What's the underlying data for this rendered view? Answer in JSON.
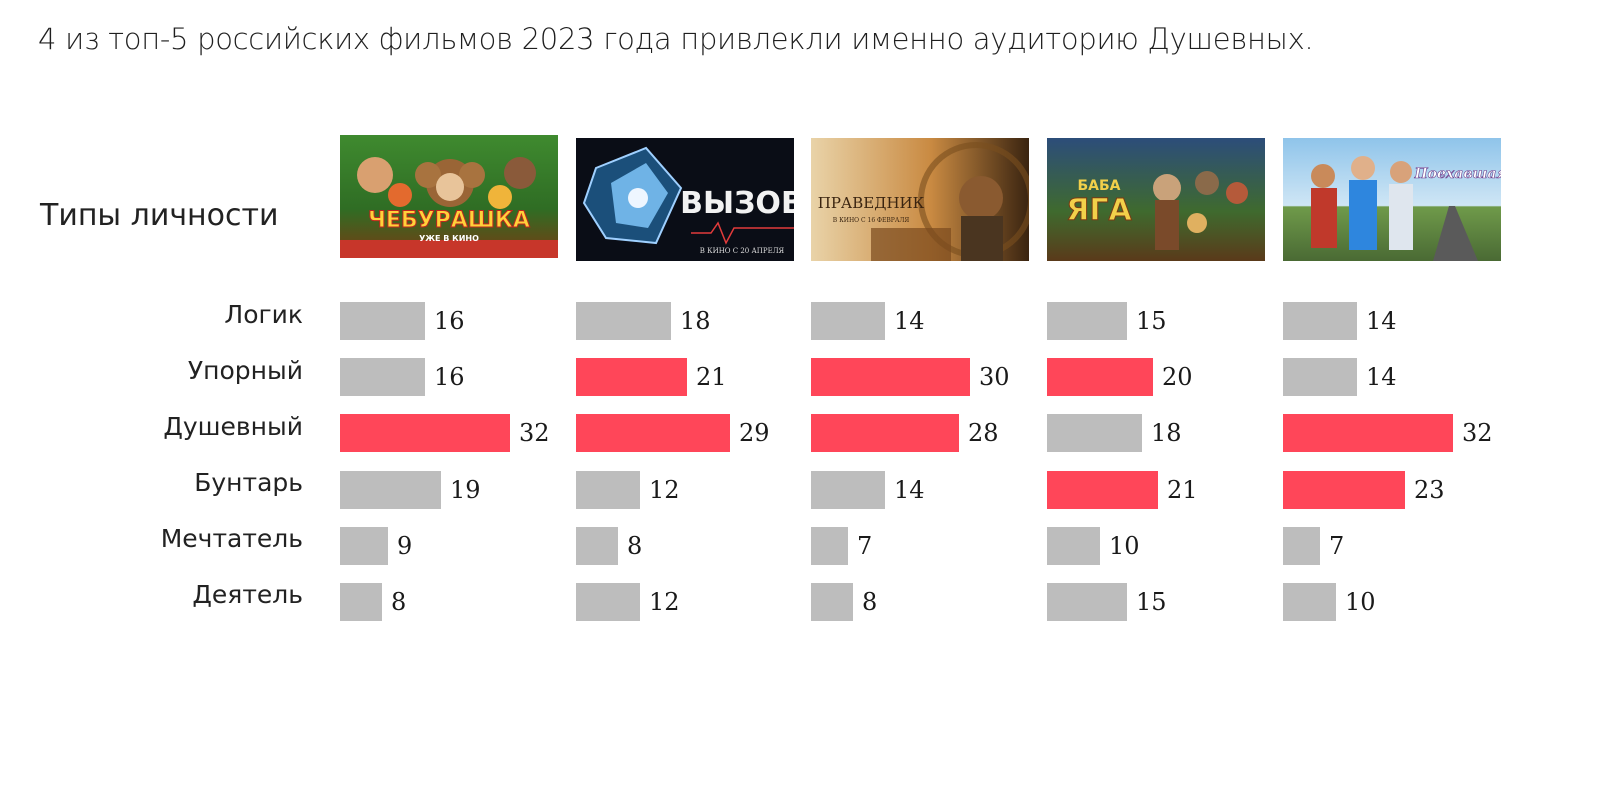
{
  "headline": "4 из топ-5 российских фильмов 2023 года привлекли именно аудиторию Душевных.",
  "colors": {
    "highlight": "#ff4659",
    "neutral": "#bdbdbd"
  },
  "chart_data": {
    "type": "bar",
    "title": "Типы личности",
    "categories": [
      "Логик",
      "Упорный",
      "Душевный",
      "Бунтарь",
      "Мечтатель",
      "Деятель"
    ],
    "series": [
      {
        "name": "Чебурашка",
        "poster_text": [
          "ЧЕБУРАШКА",
          "УЖЕ В КИНО"
        ],
        "values": [
          16,
          16,
          32,
          19,
          9,
          8
        ],
        "highlighted": [
          false,
          false,
          true,
          false,
          false,
          false
        ]
      },
      {
        "name": "Вызов",
        "poster_text": [
          "ВЫЗОВ",
          "В КИНО С 20 АПРЕЛЯ"
        ],
        "values": [
          18,
          21,
          29,
          12,
          8,
          12
        ],
        "highlighted": [
          false,
          true,
          true,
          false,
          false,
          false
        ]
      },
      {
        "name": "Праведник",
        "poster_text": [
          "ПРАВЕДНИК",
          "В КИНО С 16 ФЕВРАЛЯ"
        ],
        "values": [
          14,
          30,
          28,
          14,
          7,
          8
        ],
        "highlighted": [
          false,
          true,
          true,
          false,
          false,
          false
        ]
      },
      {
        "name": "Баба Яга",
        "poster_text": [
          "БАБА",
          "ЯГА"
        ],
        "values": [
          15,
          20,
          18,
          21,
          10,
          15
        ],
        "highlighted": [
          false,
          true,
          false,
          true,
          false,
          false
        ]
      },
      {
        "name": "Поехавшая",
        "poster_text": [
          "Поехавшая"
        ],
        "values": [
          14,
          14,
          32,
          23,
          7,
          10
        ],
        "highlighted": [
          false,
          false,
          true,
          true,
          false,
          false
        ]
      }
    ]
  }
}
